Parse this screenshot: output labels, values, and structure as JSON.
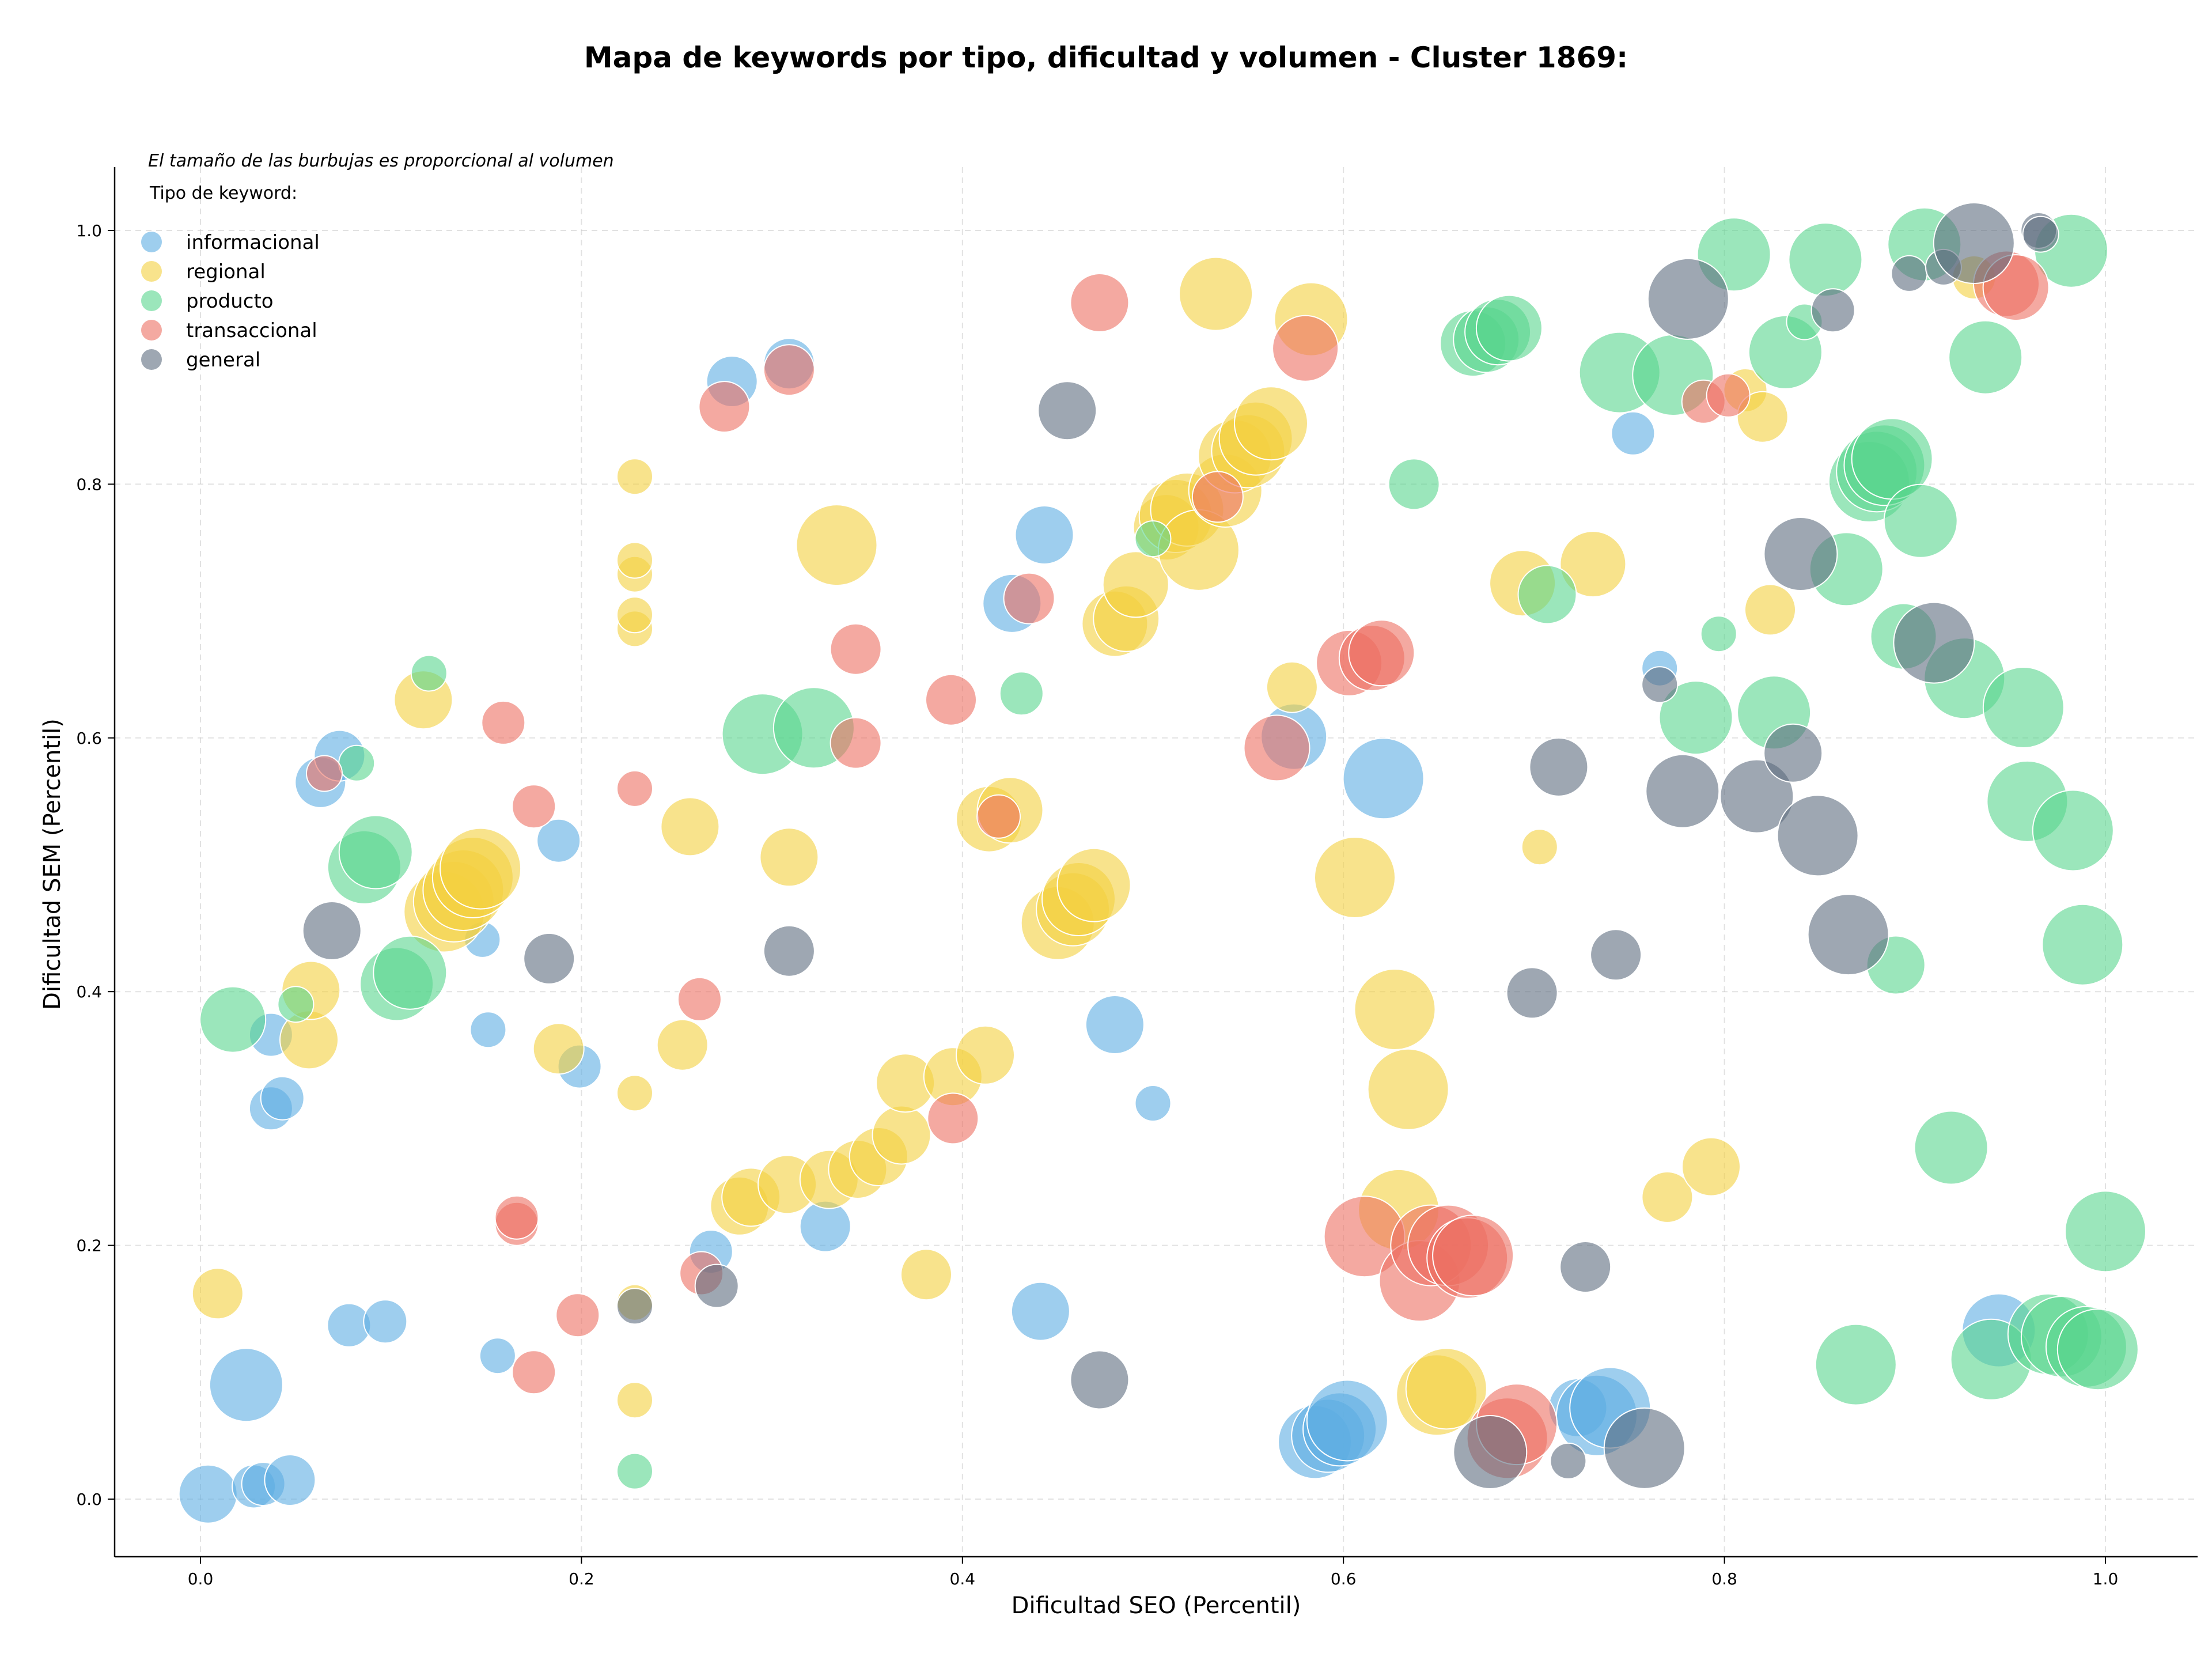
{
  "chart_data": {
    "type": "scatter",
    "title": "Mapa de keywords por tipo, dificultad y volumen - Cluster 1869:",
    "xlabel": "Dificultad SEO (Percentil)",
    "ylabel": "Dificultad SEM (Percentil)",
    "xlim": [
      -0.045,
      1.05
    ],
    "ylim": [
      -0.045,
      1.05
    ],
    "xticks": [
      "0.0",
      "0.2",
      "0.4",
      "0.6",
      "0.8",
      "1.0"
    ],
    "yticks": [
      "0.0",
      "0.2",
      "0.4",
      "0.6",
      "0.8",
      "1.0"
    ],
    "grid": true,
    "note": "El tamaño de las burbujas es proporcional al volumen",
    "legend_title": "Tipo de keyword:",
    "legend_position": "top-left",
    "series": [
      {
        "name": "informacional",
        "color": "#5DADE2",
        "points": [
          [
            0.004,
            0.004,
            5
          ],
          [
            0.028,
            0.01,
            3
          ],
          [
            0.033,
            0.012,
            3
          ],
          [
            0.047,
            0.015,
            4
          ],
          [
            0.024,
            0.09,
            7
          ],
          [
            0.078,
            0.137,
            3
          ],
          [
            0.097,
            0.14,
            3
          ],
          [
            0.156,
            0.113,
            2
          ],
          [
            0.037,
            0.308,
            3
          ],
          [
            0.043,
            0.316,
            3
          ],
          [
            0.037,
            0.366,
            3
          ],
          [
            0.151,
            0.37,
            2
          ],
          [
            0.199,
            0.341,
            3
          ],
          [
            0.148,
            0.441,
            2
          ],
          [
            0.188,
            0.519,
            3
          ],
          [
            0.063,
            0.565,
            4
          ],
          [
            0.073,
            0.586,
            4
          ],
          [
            0.268,
            0.195,
            3
          ],
          [
            0.328,
            0.215,
            4
          ],
          [
            0.441,
            0.148,
            5
          ],
          [
            0.48,
            0.374,
            5
          ],
          [
            0.5,
            0.312,
            2
          ],
          [
            0.279,
            0.881,
            4
          ],
          [
            0.309,
            0.895,
            4
          ],
          [
            0.426,
            0.706,
            5
          ],
          [
            0.443,
            0.76,
            5
          ],
          [
            0.574,
            0.601,
            6
          ],
          [
            0.621,
            0.568,
            8
          ],
          [
            0.585,
            0.045,
            7
          ],
          [
            0.592,
            0.05,
            7
          ],
          [
            0.598,
            0.055,
            7
          ],
          [
            0.602,
            0.062,
            8
          ],
          [
            0.723,
            0.072,
            5
          ],
          [
            0.733,
            0.066,
            8
          ],
          [
            0.74,
            0.072,
            8
          ],
          [
            0.752,
            0.84,
            3
          ],
          [
            0.766,
            0.655,
            2
          ],
          [
            0.944,
            0.133,
            7
          ]
        ]
      },
      {
        "name": "regional",
        "color": "#F4D03F",
        "points": [
          [
            0.009,
            0.162,
            4
          ],
          [
            0.057,
            0.362,
            5
          ],
          [
            0.058,
            0.401,
            5
          ],
          [
            0.117,
            0.63,
            5
          ],
          [
            0.128,
            0.463,
            8
          ],
          [
            0.133,
            0.471,
            8
          ],
          [
            0.138,
            0.48,
            8
          ],
          [
            0.143,
            0.49,
            8
          ],
          [
            0.147,
            0.497,
            8
          ],
          [
            0.188,
            0.355,
            4
          ],
          [
            0.228,
            0.078,
            2
          ],
          [
            0.228,
            0.155,
            2
          ],
          [
            0.228,
            0.32,
            2
          ],
          [
            0.228,
            0.686,
            2
          ],
          [
            0.228,
            0.697,
            2
          ],
          [
            0.228,
            0.729,
            2
          ],
          [
            0.228,
            0.74,
            2
          ],
          [
            0.228,
            0.806,
            2
          ],
          [
            0.253,
            0.358,
            4
          ],
          [
            0.257,
            0.53,
            5
          ],
          [
            0.283,
            0.231,
            5
          ],
          [
            0.289,
            0.238,
            5
          ],
          [
            0.308,
            0.248,
            5
          ],
          [
            0.309,
            0.506,
            5
          ],
          [
            0.33,
            0.252,
            5
          ],
          [
            0.334,
            0.752,
            8
          ],
          [
            0.345,
            0.26,
            5
          ],
          [
            0.356,
            0.27,
            5
          ],
          [
            0.368,
            0.287,
            5
          ],
          [
            0.37,
            0.328,
            5
          ],
          [
            0.381,
            0.177,
            4
          ],
          [
            0.395,
            0.333,
            5
          ],
          [
            0.412,
            0.35,
            5
          ],
          [
            0.414,
            0.536,
            6
          ],
          [
            0.425,
            0.543,
            6
          ],
          [
            0.45,
            0.454,
            7
          ],
          [
            0.458,
            0.465,
            7
          ],
          [
            0.461,
            0.473,
            7
          ],
          [
            0.469,
            0.484,
            7
          ],
          [
            0.48,
            0.69,
            6
          ],
          [
            0.486,
            0.694,
            6
          ],
          [
            0.491,
            0.721,
            6
          ],
          [
            0.507,
            0.766,
            6
          ],
          [
            0.512,
            0.775,
            7
          ],
          [
            0.518,
            0.78,
            7
          ],
          [
            0.524,
            0.748,
            8
          ],
          [
            0.533,
            0.95,
            7
          ],
          [
            0.538,
            0.795,
            7
          ],
          [
            0.543,
            0.822,
            7
          ],
          [
            0.55,
            0.826,
            7
          ],
          [
            0.554,
            0.836,
            7
          ],
          [
            0.562,
            0.848,
            7
          ],
          [
            0.573,
            0.64,
            4
          ],
          [
            0.583,
            0.93,
            7
          ],
          [
            0.606,
            0.49,
            8
          ],
          [
            0.627,
            0.386,
            8
          ],
          [
            0.629,
            0.228,
            8
          ],
          [
            0.634,
            0.323,
            8
          ],
          [
            0.649,
            0.082,
            8
          ],
          [
            0.654,
            0.087,
            8
          ],
          [
            0.694,
            0.722,
            6
          ],
          [
            0.703,
            0.514,
            2
          ],
          [
            0.731,
            0.737,
            6
          ],
          [
            0.77,
            0.238,
            4
          ],
          [
            0.793,
            0.262,
            5
          ],
          [
            0.811,
            0.874,
            3
          ],
          [
            0.82,
            0.853,
            4
          ],
          [
            0.824,
            0.701,
            4
          ],
          [
            0.931,
            0.963,
            3
          ]
        ]
      },
      {
        "name": "producto",
        "color": "#58D68D",
        "points": [
          [
            0.017,
            0.378,
            6
          ],
          [
            0.05,
            0.39,
            2
          ],
          [
            0.082,
            0.58,
            2
          ],
          [
            0.086,
            0.498,
            7
          ],
          [
            0.092,
            0.51,
            7
          ],
          [
            0.103,
            0.406,
            7
          ],
          [
            0.11,
            0.415,
            7
          ],
          [
            0.12,
            0.651,
            2
          ],
          [
            0.228,
            0.022,
            2
          ],
          [
            0.295,
            0.603,
            8
          ],
          [
            0.322,
            0.608,
            8
          ],
          [
            0.431,
            0.635,
            3
          ],
          [
            0.5,
            0.757,
            2
          ],
          [
            0.637,
            0.8,
            4
          ],
          [
            0.668,
            0.911,
            6
          ],
          [
            0.675,
            0.914,
            6
          ],
          [
            0.681,
            0.92,
            6
          ],
          [
            0.687,
            0.923,
            6
          ],
          [
            0.707,
            0.713,
            5
          ],
          [
            0.745,
            0.888,
            8
          ],
          [
            0.773,
            0.886,
            8
          ],
          [
            0.785,
            0.616,
            7
          ],
          [
            0.797,
            0.682,
            2
          ],
          [
            0.805,
            0.981,
            7
          ],
          [
            0.826,
            0.62,
            7
          ],
          [
            0.832,
            0.904,
            7
          ],
          [
            0.842,
            0.928,
            2
          ],
          [
            0.853,
            0.977,
            7
          ],
          [
            0.864,
            0.733,
            7
          ],
          [
            0.876,
            0.802,
            8
          ],
          [
            0.88,
            0.81,
            8
          ],
          [
            0.884,
            0.815,
            8
          ],
          [
            0.888,
            0.82,
            8
          ],
          [
            0.89,
            0.421,
            5
          ],
          [
            0.894,
            0.68,
            6
          ],
          [
            0.903,
            0.771,
            7
          ],
          [
            0.905,
            0.989,
            7
          ],
          [
            0.926,
            0.647,
            8
          ],
          [
            0.937,
            0.9,
            7
          ],
          [
            0.919,
            0.277,
            7
          ],
          [
            0.869,
            0.106,
            8
          ],
          [
            0.94,
            0.11,
            8
          ],
          [
            0.957,
            0.624,
            8
          ],
          [
            0.959,
            0.55,
            8
          ],
          [
            0.97,
            0.13,
            8
          ],
          [
            0.977,
            0.128,
            8
          ],
          [
            0.982,
            0.984,
            7
          ],
          [
            0.983,
            0.527,
            8
          ],
          [
            0.988,
            0.437,
            8
          ],
          [
            0.99,
            0.12,
            8
          ],
          [
            0.996,
            0.118,
            8
          ],
          [
            1.0,
            0.211,
            8
          ]
        ]
      },
      {
        "name": "transaccional",
        "color": "#EC7063",
        "points": [
          [
            0.065,
            0.572,
            2
          ],
          [
            0.159,
            0.612,
            3
          ],
          [
            0.166,
            0.217,
            3
          ],
          [
            0.166,
            0.222,
            3
          ],
          [
            0.175,
            0.1,
            3
          ],
          [
            0.175,
            0.546,
            3
          ],
          [
            0.198,
            0.145,
            3
          ],
          [
            0.228,
            0.56,
            2
          ],
          [
            0.263,
            0.178,
            3
          ],
          [
            0.262,
            0.394,
            3
          ],
          [
            0.275,
            0.861,
            4
          ],
          [
            0.309,
            0.89,
            4
          ],
          [
            0.344,
            0.67,
            4
          ],
          [
            0.344,
            0.596,
            4
          ],
          [
            0.394,
            0.63,
            4
          ],
          [
            0.395,
            0.3,
            4
          ],
          [
            0.419,
            0.538,
            3
          ],
          [
            0.435,
            0.71,
            4
          ],
          [
            0.472,
            0.943,
            5
          ],
          [
            0.534,
            0.79,
            4
          ],
          [
            0.565,
            0.592,
            6
          ],
          [
            0.58,
            0.907,
            6
          ],
          [
            0.603,
            0.659,
            6
          ],
          [
            0.615,
            0.663,
            6
          ],
          [
            0.62,
            0.667,
            6
          ],
          [
            0.611,
            0.207,
            8
          ],
          [
            0.64,
            0.172,
            8
          ],
          [
            0.646,
            0.2,
            8
          ],
          [
            0.655,
            0.2,
            8
          ],
          [
            0.665,
            0.19,
            8
          ],
          [
            0.668,
            0.192,
            8
          ],
          [
            0.686,
            0.048,
            8
          ],
          [
            0.691,
            0.059,
            8
          ],
          [
            0.789,
            0.865,
            3
          ],
          [
            0.802,
            0.87,
            3
          ],
          [
            0.948,
            0.958,
            6
          ],
          [
            0.953,
            0.955,
            6
          ]
        ]
      },
      {
        "name": "general",
        "color": "#5D6D7E",
        "points": [
          [
            0.069,
            0.448,
            5
          ],
          [
            0.183,
            0.426,
            4
          ],
          [
            0.228,
            0.152,
            2
          ],
          [
            0.271,
            0.168,
            3
          ],
          [
            0.309,
            0.432,
            4
          ],
          [
            0.455,
            0.858,
            5
          ],
          [
            0.472,
            0.094,
            5
          ],
          [
            0.677,
            0.037,
            7
          ],
          [
            0.699,
            0.399,
            4
          ],
          [
            0.713,
            0.577,
            5
          ],
          [
            0.718,
            0.03,
            2
          ],
          [
            0.727,
            0.183,
            4
          ],
          [
            0.743,
            0.429,
            4
          ],
          [
            0.758,
            0.04,
            8
          ],
          [
            0.766,
            0.642,
            2
          ],
          [
            0.778,
            0.558,
            7
          ],
          [
            0.781,
            0.946,
            8
          ],
          [
            0.817,
            0.554,
            7
          ],
          [
            0.836,
            0.588,
            5
          ],
          [
            0.84,
            0.745,
            7
          ],
          [
            0.849,
            0.523,
            8
          ],
          [
            0.857,
            0.937,
            3
          ],
          [
            0.865,
            0.445,
            8
          ],
          [
            0.897,
            0.966,
            2
          ],
          [
            0.91,
            0.675,
            8
          ],
          [
            0.915,
            0.971,
            2
          ],
          [
            0.931,
            0.99,
            8
          ],
          [
            0.965,
            1.0,
            2
          ],
          [
            0.966,
            0.997,
            2
          ]
        ]
      }
    ]
  }
}
